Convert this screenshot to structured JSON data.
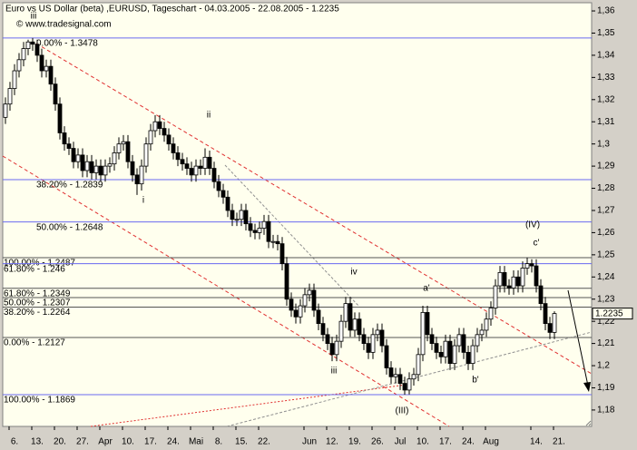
{
  "chart_data": {
    "type": "candlestick",
    "title": "Euro vs US Dollar (beta) ,EURUSD, Tageschart - 04.03.2005 - 22.08.2005 - 1.2235",
    "subtitle": "© www.tradesignal.com",
    "x": [
      "2005-03-04",
      "2005-03-07",
      "2005-03-08",
      "2005-03-09",
      "2005-03-10",
      "2005-03-11",
      "2005-03-14",
      "2005-03-15",
      "2005-03-16",
      "2005-03-17",
      "2005-03-18",
      "2005-03-21",
      "2005-03-22",
      "2005-03-23",
      "2005-03-24",
      "2005-03-25",
      "2005-03-28",
      "2005-03-29",
      "2005-03-30",
      "2005-03-31",
      "2005-04-01",
      "2005-04-04",
      "2005-04-05",
      "2005-04-06",
      "2005-04-07",
      "2005-04-08",
      "2005-04-11",
      "2005-04-12",
      "2005-04-13",
      "2005-04-14",
      "2005-04-15",
      "2005-04-18",
      "2005-04-19",
      "2005-04-20",
      "2005-04-21",
      "2005-04-22",
      "2005-04-25",
      "2005-04-26",
      "2005-04-27",
      "2005-04-28",
      "2005-04-29",
      "2005-05-02",
      "2005-05-03",
      "2005-05-04",
      "2005-05-05",
      "2005-05-06",
      "2005-05-09",
      "2005-05-10",
      "2005-05-11",
      "2005-05-12",
      "2005-05-13",
      "2005-05-16",
      "2005-05-17",
      "2005-05-18",
      "2005-05-19",
      "2005-05-20",
      "2005-05-23",
      "2005-05-24",
      "2005-05-25",
      "2005-05-26",
      "2005-05-27",
      "2005-05-30",
      "2005-05-31",
      "2005-06-01",
      "2005-06-02",
      "2005-06-03",
      "2005-06-06",
      "2005-06-07",
      "2005-06-08",
      "2005-06-09",
      "2005-06-10",
      "2005-06-13",
      "2005-06-14",
      "2005-06-15",
      "2005-06-16",
      "2005-06-17",
      "2005-06-20",
      "2005-06-21",
      "2005-06-22",
      "2005-06-23",
      "2005-06-24",
      "2005-06-27",
      "2005-06-28",
      "2005-06-29",
      "2005-06-30",
      "2005-07-01",
      "2005-07-04",
      "2005-07-05",
      "2005-07-06",
      "2005-07-07",
      "2005-07-08",
      "2005-07-11",
      "2005-07-12",
      "2005-07-13",
      "2005-07-14",
      "2005-07-15",
      "2005-07-18",
      "2005-07-19",
      "2005-07-20",
      "2005-07-21",
      "2005-07-22",
      "2005-07-25",
      "2005-07-26",
      "2005-07-27",
      "2005-07-28",
      "2005-07-29",
      "2005-08-01",
      "2005-08-02",
      "2005-08-03",
      "2005-08-04",
      "2005-08-05",
      "2005-08-08",
      "2005-08-09",
      "2005-08-10",
      "2005-08-11",
      "2005-08-12",
      "2005-08-15",
      "2005-08-16",
      "2005-08-17",
      "2005-08-18",
      "2005-08-19",
      "2005-08-22"
    ],
    "open": [
      1.312,
      1.318,
      1.325,
      1.333,
      1.338,
      1.343,
      1.346,
      1.345,
      1.34,
      1.333,
      1.335,
      1.327,
      1.318,
      1.305,
      1.3,
      1.298,
      1.292,
      1.295,
      1.288,
      1.292,
      1.287,
      1.29,
      1.286,
      1.29,
      1.291,
      1.296,
      1.3,
      1.301,
      1.292,
      1.286,
      1.282,
      1.29,
      1.3,
      1.306,
      1.31,
      1.307,
      1.304,
      1.3,
      1.296,
      1.293,
      1.291,
      1.289,
      1.286,
      1.29,
      1.289,
      1.294,
      1.289,
      1.283,
      1.279,
      1.276,
      1.27,
      1.266,
      1.266,
      1.27,
      1.264,
      1.261,
      1.26,
      1.262,
      1.265,
      1.256,
      1.256,
      1.255,
      1.246,
      1.23,
      1.225,
      1.222,
      1.227,
      1.232,
      1.234,
      1.225,
      1.219,
      1.214,
      1.21,
      1.205,
      1.211,
      1.22,
      1.228,
      1.216,
      1.221,
      1.214,
      1.21,
      1.206,
      1.214,
      1.216,
      1.209,
      1.199,
      1.195,
      1.196,
      1.192,
      1.189,
      1.194,
      1.196,
      1.205,
      1.224,
      1.214,
      1.21,
      1.206,
      1.204,
      1.211,
      1.201,
      1.209,
      1.214,
      1.206,
      1.201,
      1.209,
      1.214,
      1.216,
      1.221,
      1.226,
      1.236,
      1.242,
      1.236,
      1.235,
      1.24,
      1.236,
      1.244,
      1.246,
      1.245,
      1.236,
      1.228,
      1.219,
      1.215
    ],
    "high": [
      1.321,
      1.328,
      1.336,
      1.341,
      1.346,
      1.347,
      1.3478,
      1.347,
      1.343,
      1.338,
      1.338,
      1.33,
      1.321,
      1.308,
      1.303,
      1.301,
      1.298,
      1.298,
      1.295,
      1.295,
      1.293,
      1.293,
      1.293,
      1.294,
      1.299,
      1.303,
      1.304,
      1.304,
      1.295,
      1.289,
      1.293,
      1.303,
      1.309,
      1.313,
      1.313,
      1.31,
      1.307,
      1.303,
      1.299,
      1.296,
      1.294,
      1.292,
      1.293,
      1.293,
      1.298,
      1.297,
      1.292,
      1.286,
      1.282,
      1.279,
      1.273,
      1.269,
      1.273,
      1.273,
      1.267,
      1.264,
      1.265,
      1.268,
      1.268,
      1.259,
      1.259,
      1.258,
      1.249,
      1.233,
      1.228,
      1.23,
      1.235,
      1.237,
      1.237,
      1.228,
      1.222,
      1.217,
      1.213,
      1.214,
      1.223,
      1.231,
      1.231,
      1.224,
      1.224,
      1.217,
      1.213,
      1.217,
      1.219,
      1.219,
      1.212,
      1.202,
      1.199,
      1.199,
      1.195,
      1.197,
      1.199,
      1.208,
      1.227,
      1.227,
      1.217,
      1.213,
      1.209,
      1.214,
      1.214,
      1.212,
      1.217,
      1.217,
      1.209,
      1.212,
      1.217,
      1.219,
      1.224,
      1.229,
      1.239,
      1.245,
      1.245,
      1.239,
      1.243,
      1.243,
      1.247,
      1.2487,
      1.248,
      1.248,
      1.239,
      1.231,
      1.222,
      1.2245
    ],
    "low": [
      1.309,
      1.315,
      1.322,
      1.33,
      1.335,
      1.34,
      1.342,
      1.337,
      1.33,
      1.33,
      1.324,
      1.315,
      1.302,
      1.297,
      1.295,
      1.289,
      1.289,
      1.285,
      1.285,
      1.284,
      1.284,
      1.283,
      1.283,
      1.287,
      1.288,
      1.293,
      1.297,
      1.289,
      1.283,
      1.277,
      1.279,
      1.287,
      1.297,
      1.303,
      1.304,
      1.301,
      1.297,
      1.293,
      1.29,
      1.288,
      1.286,
      1.283,
      1.283,
      1.286,
      1.286,
      1.286,
      1.28,
      1.276,
      1.273,
      1.267,
      1.263,
      1.263,
      1.263,
      1.261,
      1.258,
      1.257,
      1.257,
      1.259,
      1.253,
      1.253,
      1.252,
      1.243,
      1.227,
      1.222,
      1.219,
      1.219,
      1.224,
      1.229,
      1.222,
      1.216,
      1.211,
      1.207,
      1.202,
      1.202,
      1.208,
      1.217,
      1.213,
      1.213,
      1.211,
      1.207,
      1.203,
      1.203,
      1.211,
      1.206,
      1.196,
      1.192,
      1.192,
      1.189,
      1.1869,
      1.187,
      1.191,
      1.193,
      1.202,
      1.211,
      1.207,
      1.203,
      1.201,
      1.201,
      1.198,
      1.198,
      1.206,
      1.203,
      1.198,
      1.198,
      1.206,
      1.211,
      1.213,
      1.218,
      1.223,
      1.233,
      1.233,
      1.232,
      1.232,
      1.233,
      1.233,
      1.241,
      1.242,
      1.233,
      1.225,
      1.216,
      1.212,
      1.212
    ],
    "close": [
      1.318,
      1.325,
      1.333,
      1.338,
      1.343,
      1.346,
      1.345,
      1.34,
      1.333,
      1.335,
      1.327,
      1.318,
      1.305,
      1.3,
      1.298,
      1.292,
      1.295,
      1.288,
      1.292,
      1.287,
      1.29,
      1.286,
      1.29,
      1.291,
      1.296,
      1.3,
      1.301,
      1.292,
      1.286,
      1.282,
      1.29,
      1.3,
      1.306,
      1.31,
      1.307,
      1.304,
      1.3,
      1.296,
      1.293,
      1.291,
      1.289,
      1.286,
      1.29,
      1.289,
      1.294,
      1.289,
      1.283,
      1.279,
      1.276,
      1.27,
      1.266,
      1.266,
      1.27,
      1.264,
      1.261,
      1.26,
      1.262,
      1.265,
      1.256,
      1.256,
      1.255,
      1.246,
      1.23,
      1.225,
      1.222,
      1.227,
      1.232,
      1.234,
      1.225,
      1.219,
      1.214,
      1.21,
      1.205,
      1.211,
      1.22,
      1.228,
      1.216,
      1.221,
      1.214,
      1.21,
      1.206,
      1.214,
      1.216,
      1.209,
      1.199,
      1.195,
      1.196,
      1.192,
      1.189,
      1.194,
      1.196,
      1.205,
      1.224,
      1.214,
      1.21,
      1.206,
      1.204,
      1.211,
      1.201,
      1.209,
      1.214,
      1.206,
      1.201,
      1.209,
      1.214,
      1.216,
      1.221,
      1.226,
      1.236,
      1.242,
      1.236,
      1.235,
      1.24,
      1.236,
      1.244,
      1.246,
      1.245,
      1.236,
      1.228,
      1.219,
      1.215,
      1.2235
    ],
    "ylim": [
      1.1726,
      1.3637
    ],
    "yticks": [
      {
        "value": 1.18,
        "label": "1,18"
      },
      {
        "value": 1.19,
        "label": "1,19"
      },
      {
        "value": 1.2,
        "label": "1,2"
      },
      {
        "value": 1.21,
        "label": "1,21"
      },
      {
        "value": 1.22,
        "label": "1,22"
      },
      {
        "value": 1.23,
        "label": "1,23"
      },
      {
        "value": 1.24,
        "label": "1,24"
      },
      {
        "value": 1.25,
        "label": "1,25"
      },
      {
        "value": 1.26,
        "label": "1,26"
      },
      {
        "value": 1.27,
        "label": "1,27"
      },
      {
        "value": 1.28,
        "label": "1,28"
      },
      {
        "value": 1.29,
        "label": "1,29"
      },
      {
        "value": 1.3,
        "label": "1,3"
      },
      {
        "value": 1.31,
        "label": "1,31"
      },
      {
        "value": 1.32,
        "label": "1,32"
      },
      {
        "value": 1.33,
        "label": "1,33"
      },
      {
        "value": 1.34,
        "label": "1,34"
      },
      {
        "value": 1.35,
        "label": "1,35"
      },
      {
        "value": 1.36,
        "label": "1,36"
      }
    ],
    "xticks": [
      {
        "value": "2005-03-06",
        "label": "6."
      },
      {
        "value": "2005-03-13",
        "label": "13."
      },
      {
        "value": "2005-03-20",
        "label": "20."
      },
      {
        "value": "2005-03-27",
        "label": "27."
      },
      {
        "value": "2005-04-03",
        "label": "Apr"
      },
      {
        "value": "2005-04-10",
        "label": "10."
      },
      {
        "value": "2005-04-17",
        "label": "17."
      },
      {
        "value": "2005-04-24",
        "label": "24."
      },
      {
        "value": "2005-05-01",
        "label": "Mai"
      },
      {
        "value": "2005-05-08",
        "label": "8."
      },
      {
        "value": "2005-05-15",
        "label": "15."
      },
      {
        "value": "2005-05-22",
        "label": "22."
      },
      {
        "value": "2005-06-05",
        "label": "Jun"
      },
      {
        "value": "2005-06-12",
        "label": "12."
      },
      {
        "value": "2005-06-19",
        "label": "19."
      },
      {
        "value": "2005-06-26",
        "label": "26."
      },
      {
        "value": "2005-07-03",
        "label": "Jul"
      },
      {
        "value": "2005-07-10",
        "label": "10."
      },
      {
        "value": "2005-07-17",
        "label": "17."
      },
      {
        "value": "2005-07-24",
        "label": "24."
      },
      {
        "value": "2005-07-31",
        "label": "Aug"
      },
      {
        "value": "2005-08-14",
        "label": "14."
      },
      {
        "value": "2005-08-21",
        "label": "21."
      }
    ],
    "up_color": "#ffffff",
    "down_color": "#000000",
    "levels": [
      {
        "label": "0.00% - 1.3478",
        "value": 1.3478,
        "color": "#6a6af0"
      },
      {
        "label": "38.20% - 1.2839",
        "value": 1.2839,
        "color": "#6a6af0"
      },
      {
        "label": "50.00% - 1.2648",
        "value": 1.2648,
        "color": "#6a6af0"
      },
      {
        "label": "100.00% - 1.2487",
        "value": 1.2487,
        "color": "#555555"
      },
      {
        "label": "61.80% - 1.246",
        "value": 1.246,
        "color": "#6a6af0"
      },
      {
        "label": "61.80% - 1.2349",
        "value": 1.2349,
        "color": "#555555"
      },
      {
        "label": "50.00% - 1.2307",
        "value": 1.2307,
        "color": "#555555"
      },
      {
        "label": "38.20% - 1.2264",
        "value": 1.2264,
        "color": "#555555"
      },
      {
        "label": "0.00% - 1.2127",
        "value": 1.2127,
        "color": "#555555"
      },
      {
        "label": "100.00% - 1.1869",
        "value": 1.1869,
        "color": "#6a6af0"
      }
    ],
    "annotations": [
      "iii",
      "ii",
      "i",
      "iv",
      "iii",
      "(III)",
      "a'",
      "b'",
      "(IV)",
      "c'"
    ]
  }
}
